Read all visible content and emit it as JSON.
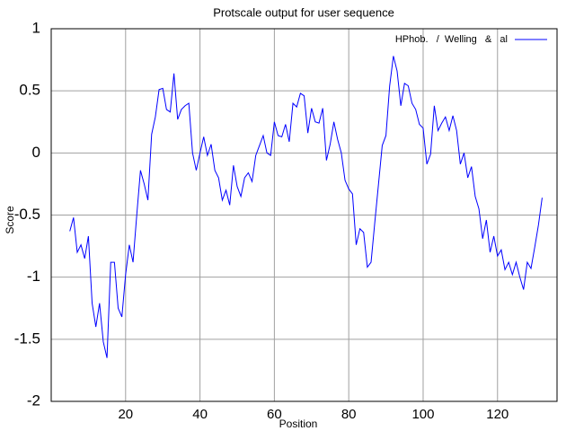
{
  "chart_data": {
    "type": "line",
    "title": "Protscale output for user sequence",
    "x_label": "Position",
    "y_label": "Score",
    "x": [
      5,
      6,
      7,
      8,
      9,
      10,
      11,
      12,
      13,
      14,
      15,
      16,
      17,
      18,
      19,
      20,
      21,
      22,
      23,
      24,
      25,
      26,
      27,
      28,
      29,
      30,
      31,
      32,
      33,
      34,
      35,
      36,
      37,
      38,
      39,
      40,
      41,
      42,
      43,
      44,
      45,
      46,
      47,
      48,
      49,
      50,
      51,
      52,
      53,
      54,
      55,
      56,
      57,
      58,
      59,
      60,
      61,
      62,
      63,
      64,
      65,
      66,
      67,
      68,
      69,
      70,
      71,
      72,
      73,
      74,
      75,
      76,
      77,
      78,
      79,
      80,
      81,
      82,
      83,
      84,
      85,
      86,
      87,
      88,
      89,
      90,
      91,
      92,
      93,
      94,
      95,
      96,
      97,
      98,
      99,
      100,
      101,
      102,
      103,
      104,
      105,
      106,
      107,
      108,
      109,
      110,
      111,
      112,
      113,
      114,
      115,
      116,
      117,
      118,
      119,
      120,
      121,
      122,
      123,
      124,
      125,
      126,
      127,
      128,
      129,
      130,
      131,
      132
    ],
    "series": [
      {
        "name": "HPhob.   /  Welling   &   al",
        "color": "#0000ff",
        "values": [
          -0.63,
          -0.52,
          -0.8,
          -0.74,
          -0.85,
          -0.67,
          -1.21,
          -1.4,
          -1.21,
          -1.52,
          -1.65,
          -0.88,
          -0.88,
          -1.25,
          -1.32,
          -0.98,
          -0.74,
          -0.88,
          -0.5,
          -0.14,
          -0.25,
          -0.38,
          0.15,
          0.29,
          0.51,
          0.52,
          0.35,
          0.33,
          0.64,
          0.27,
          0.35,
          0.38,
          0.4,
          0,
          -0.14,
          0,
          0.13,
          -0.02,
          0.07,
          -0.14,
          -0.2,
          -0.38,
          -0.3,
          -0.42,
          -0.1,
          -0.27,
          -0.35,
          -0.2,
          -0.16,
          -0.23,
          -0.02,
          0.06,
          0.14,
          0,
          -0.02,
          0.25,
          0.14,
          0.13,
          0.23,
          0.09,
          0.4,
          0.37,
          0.48,
          0.46,
          0.16,
          0.36,
          0.25,
          0.24,
          0.36,
          -0.06,
          0.07,
          0.25,
          0.11,
          0,
          -0.22,
          -0.29,
          -0.33,
          -0.74,
          -0.61,
          -0.64,
          -0.92,
          -0.88,
          -0.56,
          -0.25,
          0.06,
          0.14,
          0.54,
          0.78,
          0.66,
          0.38,
          0.56,
          0.54,
          0.4,
          0.35,
          0.23,
          0.2,
          -0.09,
          -0.01,
          0.38,
          0.18,
          0.24,
          0.29,
          0.18,
          0.3,
          0.18,
          -0.09,
          0,
          -0.2,
          -0.11,
          -0.35,
          -0.45,
          -0.69,
          -0.54,
          -0.8,
          -0.67,
          -0.83,
          -0.78,
          -0.94,
          -0.88,
          -0.98,
          -0.88,
          -1.0,
          -1.1,
          -0.88,
          -0.93,
          -0.76,
          -0.58,
          -0.36
        ]
      }
    ],
    "xlim": [
      0,
      136
    ],
    "xticks": [
      20,
      40,
      60,
      80,
      100,
      120
    ],
    "ylim": [
      -2,
      1
    ],
    "yticks": [
      -2,
      -1.5,
      -1,
      -0.5,
      0,
      0.5,
      1
    ],
    "grid": true,
    "legend": "top-right"
  }
}
